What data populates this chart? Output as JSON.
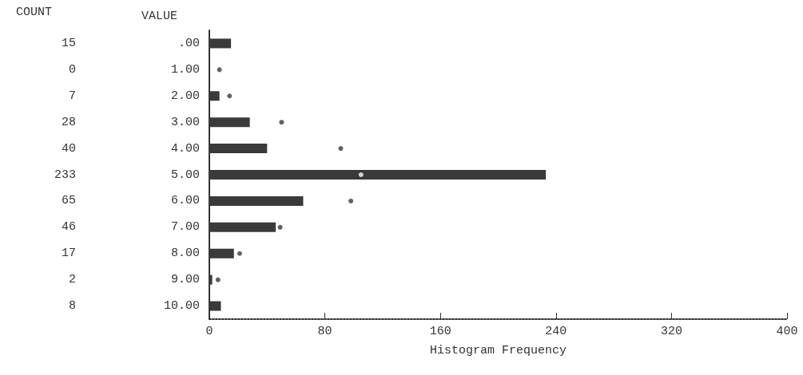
{
  "chart_data": {
    "type": "bar",
    "orientation": "horizontal",
    "ylabel": "VALUE",
    "xlabel": "Histogram Frequency",
    "annotations": [
      "COUNT"
    ],
    "categories": [
      ".00",
      "1.00",
      "2.00",
      "3.00",
      "4.00",
      "5.00",
      "6.00",
      "7.00",
      "8.00",
      "9.00",
      "10.00"
    ],
    "series": [
      {
        "color": "#3a3a3a",
        "values": [
          15,
          0,
          7,
          28,
          40,
          233,
          65,
          46,
          17,
          2,
          8
        ],
        "value_labels": [
          "15",
          "0",
          "7",
          "28",
          "40",
          "233",
          "65",
          "46",
          "17",
          "2",
          "8"
        ]
      },
      {
        "type": "scatter",
        "color": "#3a3a3a",
        "colors": [
          null,
          "#3a3a3a",
          "#3a3a3a",
          "#3a3a3a",
          "#3a3a3a",
          "#ffffff",
          "#3a3a3a",
          "#3a3a3a",
          "#3a3a3a",
          "#3a3a3a",
          null
        ],
        "marker": "circle",
        "values": [
          null,
          7,
          14,
          50,
          91,
          105,
          98,
          49,
          21,
          6,
          null
        ]
      }
    ],
    "xlim": [
      0,
      400
    ],
    "xticks": [
      0,
      80,
      160,
      240,
      320,
      400
    ],
    "grid": false
  }
}
